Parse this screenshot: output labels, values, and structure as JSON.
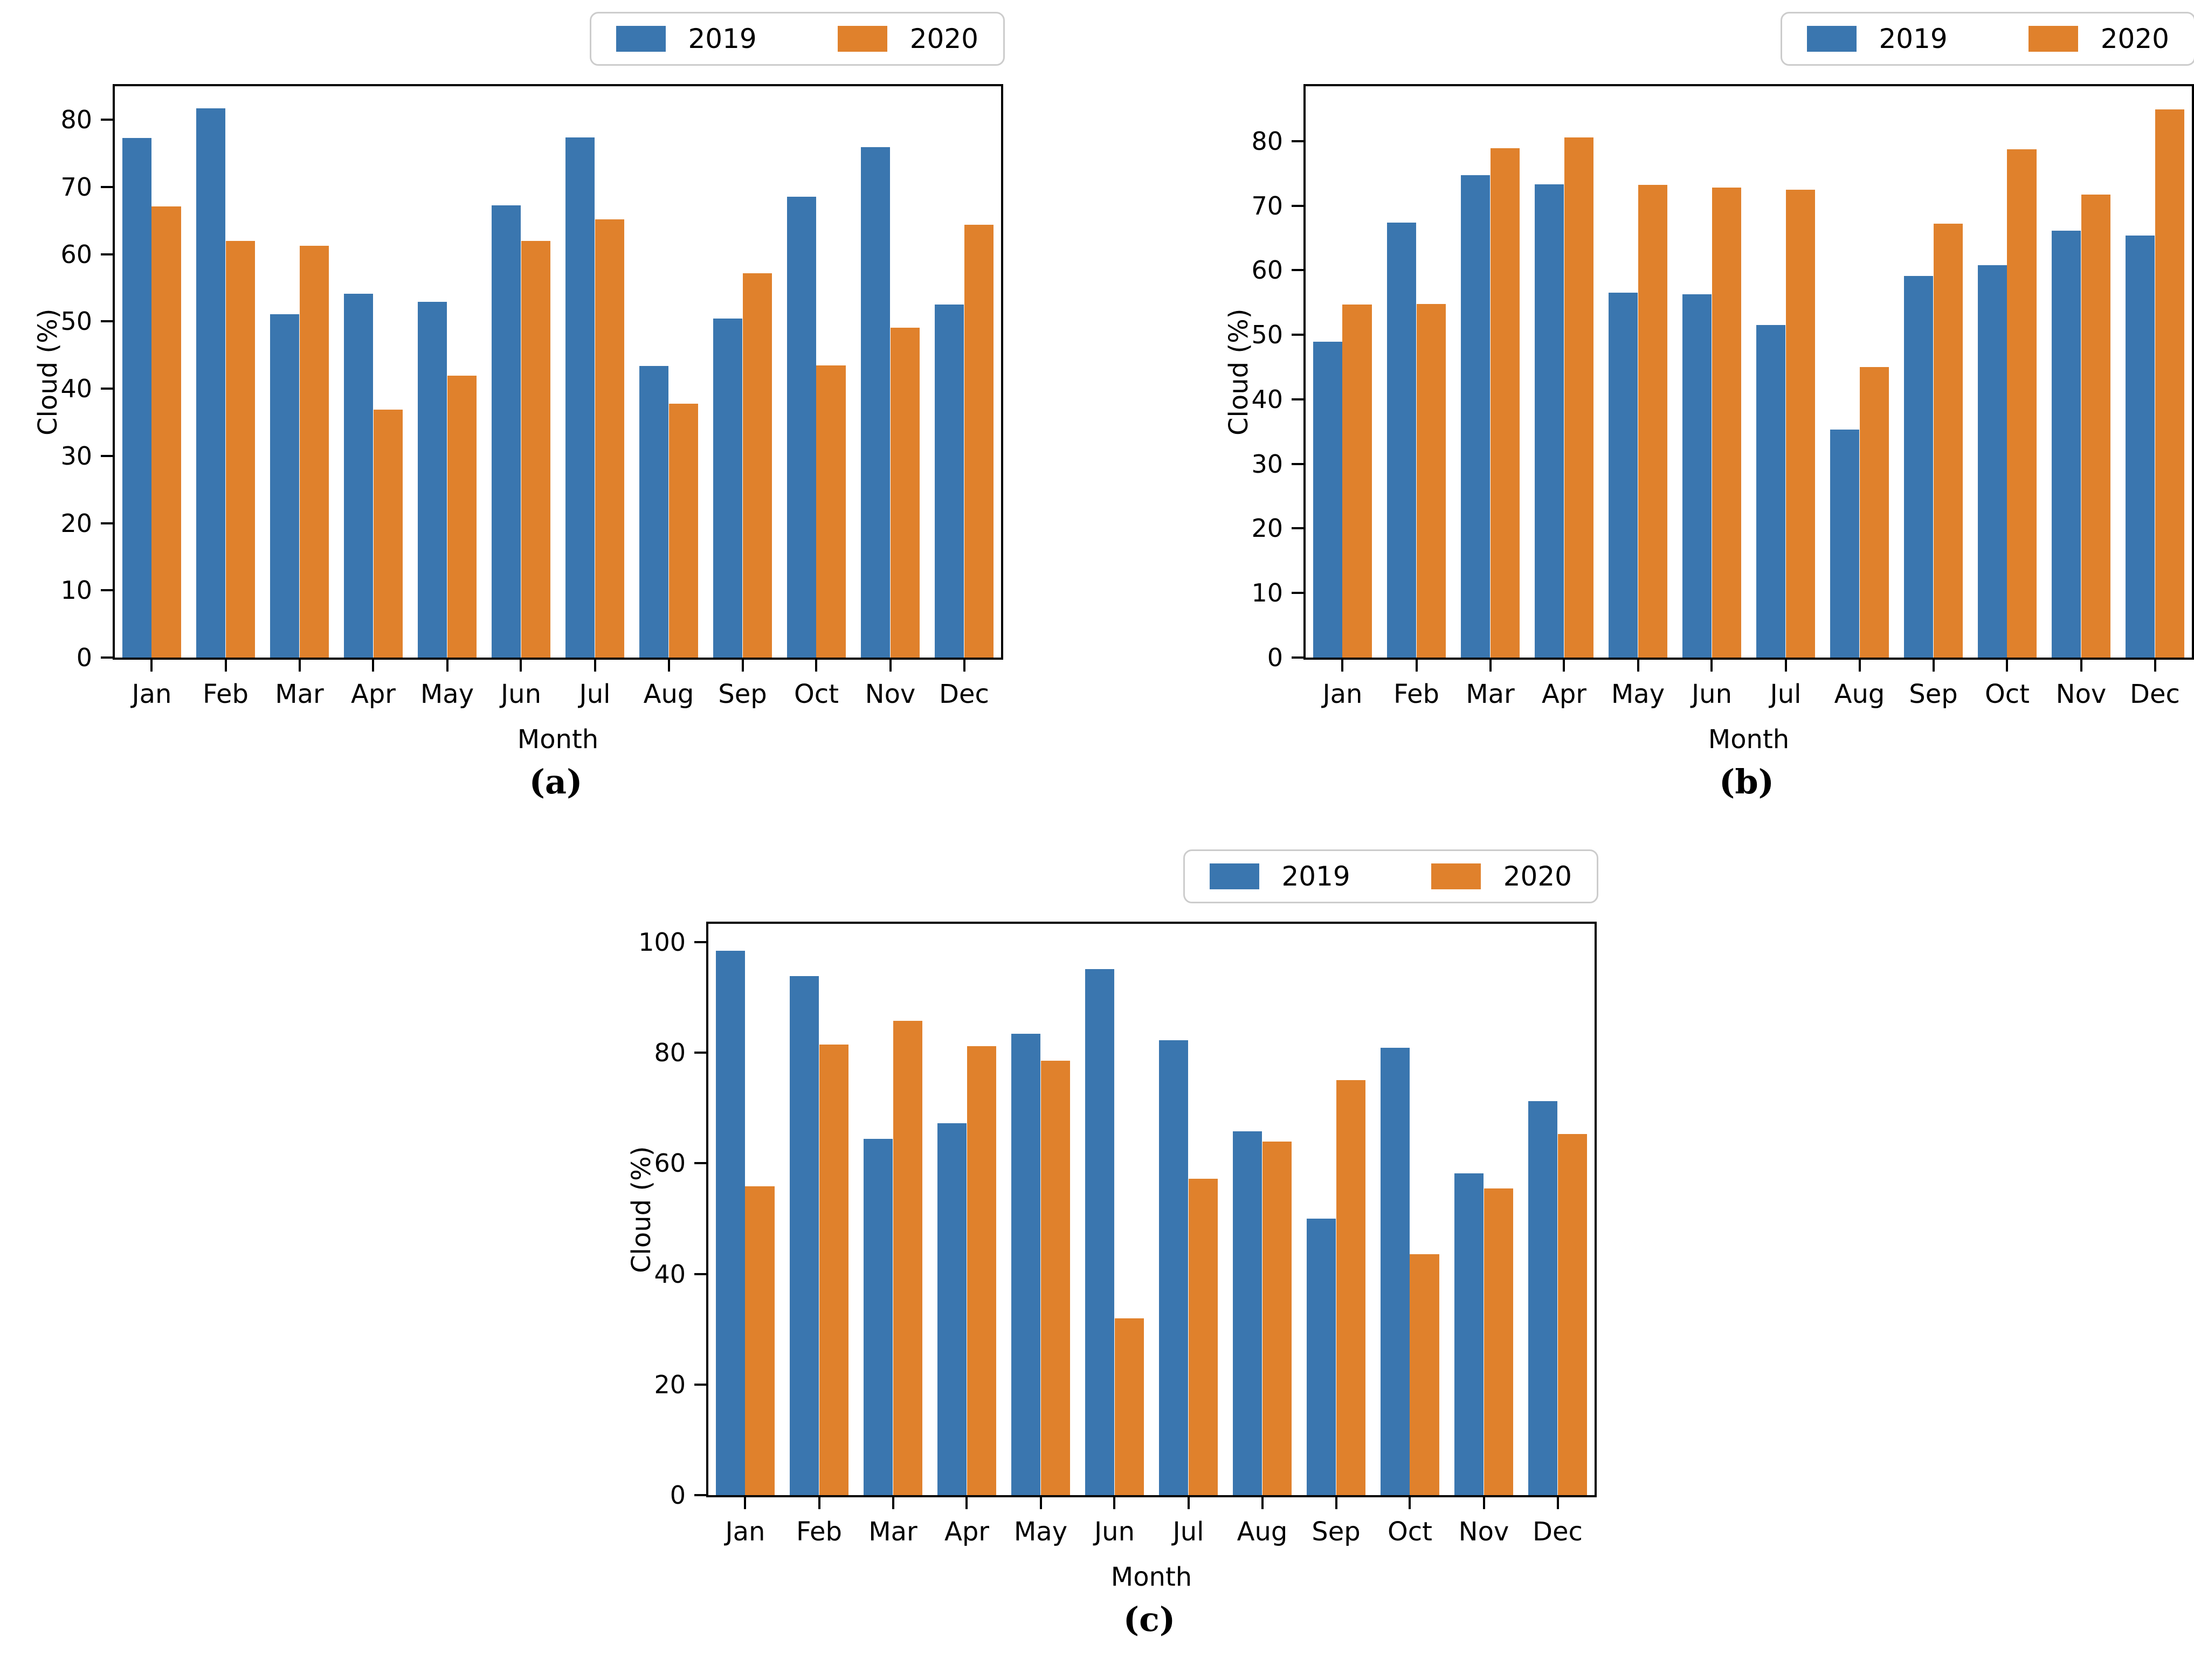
{
  "figure": {
    "background": "#ffffff",
    "axis_color": "#000000",
    "legend_border_color": "#cccccc",
    "series_colors": {
      "2019": "#3A76AF",
      "2020": "#E0812C"
    }
  },
  "chart_data": [
    {
      "id": "a",
      "type": "bar",
      "caption": "(a)",
      "xlabel": "Month",
      "ylabel": "Cloud (%)",
      "grid": false,
      "legend_position": "above-right",
      "ylim": [
        0,
        85
      ],
      "yticks": [
        0,
        10,
        20,
        30,
        40,
        50,
        60,
        70,
        80
      ],
      "categories": [
        "Jan",
        "Feb",
        "Mar",
        "Apr",
        "May",
        "Jun",
        "Jul",
        "Aug",
        "Sep",
        "Oct",
        "Nov",
        "Dec"
      ],
      "series": [
        {
          "name": "2019",
          "color": "#3A76AF",
          "values": [
            77.3,
            81.7,
            51.1,
            54.1,
            52.9,
            67.3,
            77.4,
            43.4,
            50.4,
            68.6,
            75.9,
            52.5
          ]
        },
        {
          "name": "2020",
          "color": "#E0812C",
          "values": [
            67.1,
            62.0,
            61.3,
            36.9,
            41.9,
            62.0,
            65.2,
            37.8,
            57.2,
            43.5,
            49.1,
            64.4
          ]
        }
      ]
    },
    {
      "id": "b",
      "type": "bar",
      "caption": "(b)",
      "xlabel": "Month",
      "ylabel": "Cloud (%)",
      "grid": false,
      "legend_position": "above-right",
      "ylim": [
        0,
        88.5
      ],
      "yticks": [
        0,
        10,
        20,
        30,
        40,
        50,
        60,
        70,
        80
      ],
      "categories": [
        "Jan",
        "Feb",
        "Mar",
        "Apr",
        "May",
        "Jun",
        "Jul",
        "Aug",
        "Sep",
        "Oct",
        "Nov",
        "Dec"
      ],
      "series": [
        {
          "name": "2019",
          "color": "#3A76AF",
          "values": [
            48.9,
            67.4,
            74.7,
            73.3,
            56.5,
            56.3,
            51.5,
            35.3,
            59.1,
            60.8,
            66.1,
            65.4
          ]
        },
        {
          "name": "2020",
          "color": "#E0812C",
          "values": [
            54.7,
            54.8,
            78.9,
            80.6,
            73.2,
            72.8,
            72.5,
            45.0,
            67.2,
            78.7,
            71.7,
            84.9
          ]
        }
      ]
    },
    {
      "id": "c",
      "type": "bar",
      "caption": "(c)",
      "xlabel": "Month",
      "ylabel": "Cloud (%)",
      "grid": false,
      "legend_position": "above-right",
      "ylim": [
        0,
        103.3
      ],
      "yticks": [
        0,
        20,
        40,
        60,
        80,
        100
      ],
      "categories": [
        "Jan",
        "Feb",
        "Mar",
        "Apr",
        "May",
        "Jun",
        "Jul",
        "Aug",
        "Sep",
        "Oct",
        "Nov",
        "Dec"
      ],
      "series": [
        {
          "name": "2019",
          "color": "#3A76AF",
          "values": [
            98.4,
            93.8,
            64.4,
            67.2,
            83.4,
            95.1,
            82.3,
            65.8,
            50.0,
            80.9,
            58.2,
            71.2
          ]
        },
        {
          "name": "2020",
          "color": "#E0812C",
          "values": [
            55.8,
            81.5,
            85.8,
            81.2,
            78.5,
            32.0,
            57.2,
            63.9,
            75.0,
            43.6,
            55.5,
            65.3
          ]
        }
      ]
    }
  ]
}
